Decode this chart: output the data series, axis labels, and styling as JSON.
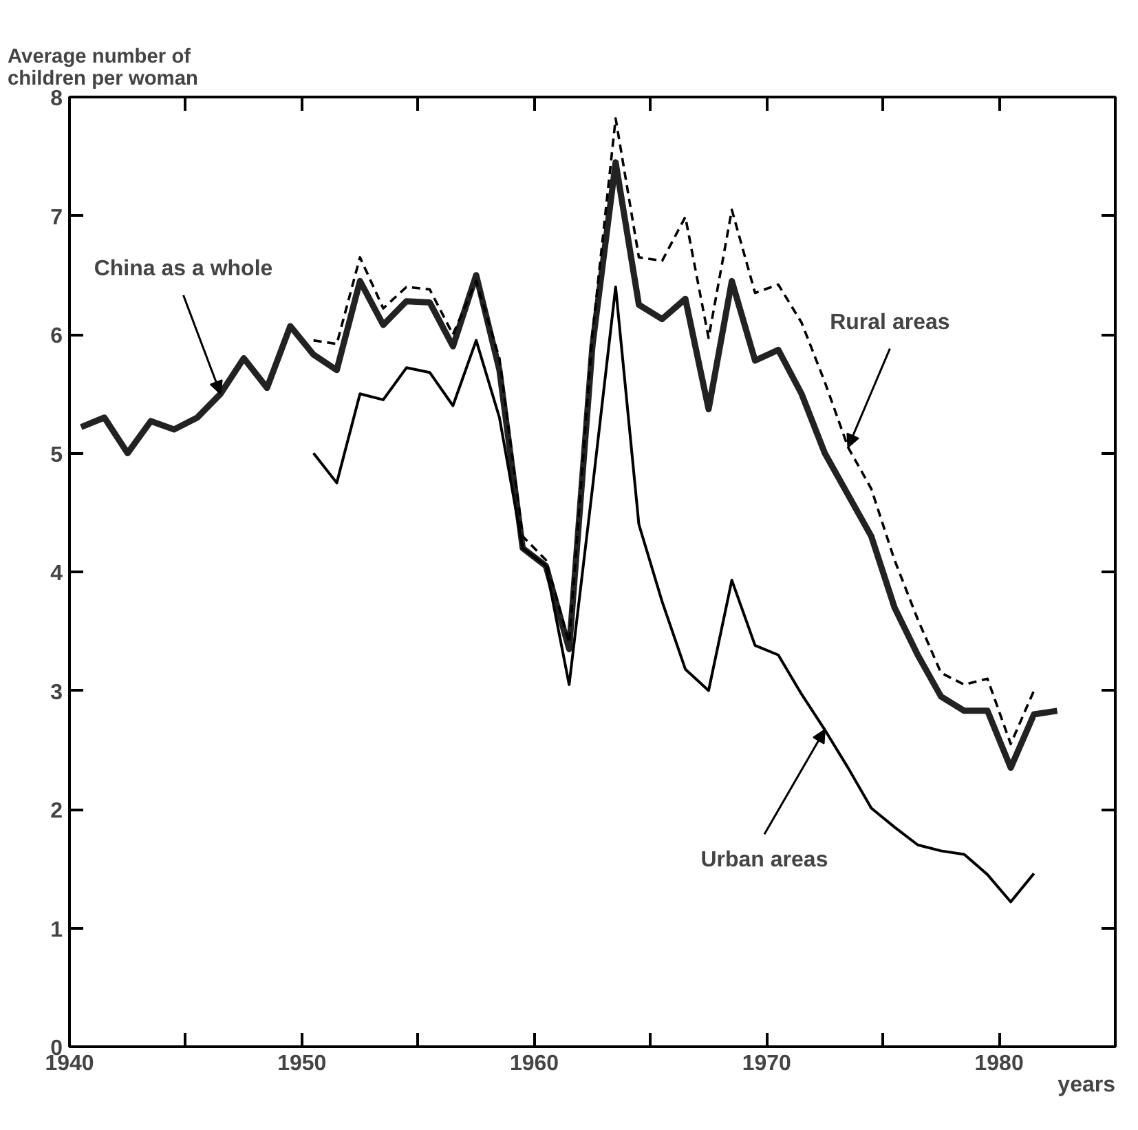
{
  "chart_data": {
    "type": "line",
    "ylabel": "Average number of\nchildren per woman",
    "xlabel": "years",
    "xlim": [
      1940,
      1985
    ],
    "ylim": [
      0,
      8
    ],
    "xticks": [
      1940,
      {
        "value": 1945,
        "label": null
      },
      1950,
      {
        "value": 1955,
        "label": null
      },
      1960,
      {
        "value": 1965,
        "label": null
      },
      1970,
      {
        "value": 1975,
        "label": null
      },
      1980
    ],
    "yticks": [
      0,
      1,
      2,
      3,
      4,
      5,
      6,
      7,
      8
    ],
    "grid": false,
    "marker": "none",
    "series": [
      {
        "color": "#222222",
        "line_style": "solid",
        "x": [
          1940.5,
          1941.5,
          1942.5,
          1943.5,
          1944.5,
          1945.5,
          1946.5,
          1947.5,
          1948.5,
          1949.5,
          1950.5,
          1951.5,
          1952.5,
          1953.5,
          1954.5,
          1955.5,
          1956.5,
          1957.5,
          1958.5,
          1959.5,
          1960.5,
          1961.5,
          1962.5,
          1963.5,
          1964.5,
          1965.5,
          1966.5,
          1967.5,
          1968.5,
          1969.5,
          1970.5,
          1971.5,
          1972.5,
          1973.5,
          1974.5,
          1975.5,
          1976.5,
          1977.5,
          1978.5,
          1979.5,
          1980.5,
          1981.5,
          1982.5
        ],
        "values": [
          5.22,
          5.3,
          5.0,
          5.27,
          5.2,
          5.3,
          5.5,
          5.8,
          5.55,
          6.07,
          5.83,
          5.7,
          6.45,
          6.08,
          6.28,
          6.27,
          5.9,
          6.5,
          5.7,
          4.2,
          4.05,
          3.35,
          5.9,
          7.45,
          6.25,
          6.13,
          6.3,
          5.37,
          6.45,
          5.78,
          5.87,
          5.5,
          5.0,
          4.65,
          4.3,
          3.7,
          3.3,
          2.95,
          2.83,
          2.83,
          2.35,
          2.8,
          2.83
        ]
      },
      {
        "color": "#000000",
        "line_style": "dashed",
        "x": [
          1950.5,
          1951.5,
          1952.5,
          1953.5,
          1954.5,
          1955.5,
          1956.5,
          1957.5,
          1958.5,
          1959.5,
          1960.5,
          1961.5,
          1962.5,
          1963.5,
          1964.5,
          1965.5,
          1966.5,
          1967.5,
          1968.5,
          1969.5,
          1970.5,
          1971.5,
          1972.5,
          1973.5,
          1974.5,
          1975.5,
          1976.5,
          1977.5,
          1978.5,
          1979.5,
          1980.5,
          1981.5
        ],
        "values": [
          5.95,
          5.92,
          6.65,
          6.22,
          6.4,
          6.38,
          6.0,
          6.45,
          5.8,
          4.3,
          4.1,
          3.4,
          6.0,
          7.82,
          6.65,
          6.62,
          6.99,
          5.97,
          7.05,
          6.35,
          6.42,
          6.1,
          5.6,
          5.05,
          4.7,
          4.1,
          3.6,
          3.15,
          3.05,
          3.1,
          2.55,
          3.0
        ]
      },
      {
        "color": "#000000",
        "line_style": "solid",
        "x": [
          1950.5,
          1951.5,
          1952.5,
          1953.5,
          1954.5,
          1955.5,
          1956.5,
          1957.5,
          1958.5,
          1959.5,
          1960.5,
          1961.5,
          1962.5,
          1963.5,
          1964.5,
          1965.5,
          1966.5,
          1967.5,
          1968.5,
          1969.5,
          1970.5,
          1971.5,
          1972.5,
          1973.5,
          1974.5,
          1975.5,
          1976.5,
          1977.5,
          1978.5,
          1979.5,
          1980.5,
          1981.5
        ],
        "values": [
          5.0,
          4.75,
          5.5,
          5.45,
          5.72,
          5.68,
          5.4,
          5.95,
          5.3,
          4.2,
          4.05,
          3.05,
          4.7,
          6.4,
          4.4,
          3.75,
          3.18,
          3.0,
          3.93,
          3.38,
          3.3,
          2.97,
          2.67,
          2.35,
          2.01,
          1.85,
          1.7,
          1.65,
          1.62,
          1.45,
          1.22,
          1.46
        ]
      }
    ],
    "annotations": [
      {
        "text": "China as a whole",
        "x": 1946.5,
        "y": 5.5
      },
      {
        "text": "Rural areas",
        "x": 1973.5,
        "y": 5.05
      },
      {
        "text": "Urban areas",
        "x": 1972.5,
        "y": 2.67
      }
    ]
  }
}
